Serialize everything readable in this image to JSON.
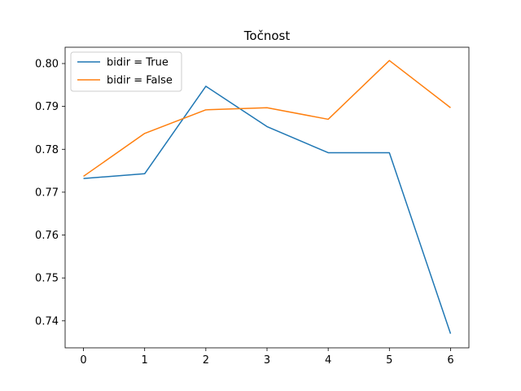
{
  "chart_data": {
    "type": "line",
    "title": "Točnost",
    "xlabel": "",
    "ylabel": "",
    "x": [
      0,
      1,
      2,
      3,
      4,
      5,
      6
    ],
    "xticks": [
      "0",
      "1",
      "2",
      "3",
      "4",
      "5",
      "6"
    ],
    "yticks": [
      "0.74",
      "0.75",
      "0.76",
      "0.77",
      "0.78",
      "0.79",
      "0.80"
    ],
    "xlim": [
      -0.3,
      6.3
    ],
    "ylim": [
      0.7337,
      0.8038
    ],
    "grid": false,
    "legend_position": "top-left",
    "series": [
      {
        "name": "bidir = True",
        "color": "#1f77b4",
        "values": [
          0.7732,
          0.7743,
          0.7947,
          0.7853,
          0.7792,
          0.7792,
          0.737
        ]
      },
      {
        "name": "bidir = False",
        "color": "#ff7f0e",
        "values": [
          0.7737,
          0.7837,
          0.7892,
          0.7897,
          0.787,
          0.8007,
          0.7897
        ]
      }
    ]
  }
}
